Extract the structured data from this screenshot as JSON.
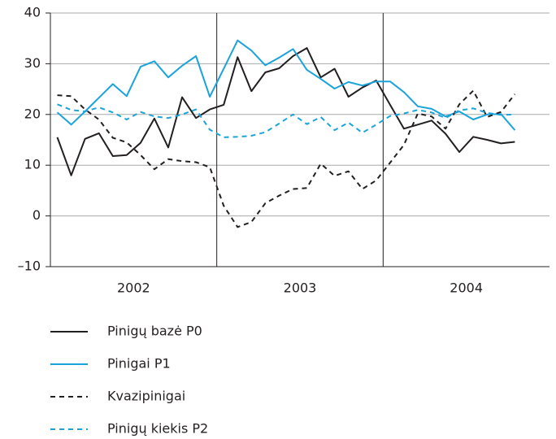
{
  "chart_data": {
    "type": "line",
    "years": [
      "2002",
      "2003",
      "2004"
    ],
    "ylim": [
      -10,
      40
    ],
    "yticks": [
      {
        "value": -10,
        "label": "–10"
      },
      0,
      10,
      20,
      30,
      40
    ],
    "grid": true,
    "legend": "bottom",
    "series": [
      {
        "name": "Pinigų bazė P0",
        "color": "#231f20",
        "dash": false,
        "values": [
          15.5,
          8,
          15.2,
          16.3,
          11.8,
          12,
          14.4,
          19.2,
          13.5,
          23.4,
          19.3,
          21,
          21.9,
          31.3,
          24.6,
          28.3,
          29.1,
          31.5,
          33.1,
          27.3,
          29,
          23.5,
          25.3,
          26.7,
          21.9,
          17.2,
          18,
          18.8,
          16.2,
          12.6,
          15.6,
          15,
          14.3,
          14.6,
          null,
          null
        ]
      },
      {
        "name": "Pinigai P1",
        "color": "#1ba3dc",
        "dash": false,
        "values": [
          20.4,
          18,
          20.6,
          23.3,
          26,
          23.6,
          29.4,
          30.5,
          27.3,
          29.6,
          31.5,
          23.5,
          29,
          34.6,
          32.6,
          29.7,
          31.2,
          32.9,
          28.8,
          27,
          25.1,
          26.4,
          25.7,
          26.5,
          26.5,
          24.4,
          21.6,
          21.1,
          19.6,
          20.6,
          19,
          20,
          20.1,
          16.9,
          null,
          null
        ]
      },
      {
        "name": "Kvazipinigai",
        "color": "#231f20",
        "dash": true,
        "values": [
          23.8,
          23.6,
          21,
          19,
          15.4,
          14.5,
          12,
          9.2,
          11.2,
          10.8,
          10.6,
          9.6,
          2,
          -2.2,
          -1.2,
          2.5,
          4,
          5.3,
          5.5,
          10.3,
          7.9,
          8.8,
          5.3,
          7,
          10.5,
          14,
          20.2,
          19.6,
          17.2,
          22,
          24.7,
          19.5,
          20.5,
          24,
          null,
          null
        ]
      },
      {
        "name": "Pinigų kiekis P2",
        "color": "#1ba3dc",
        "dash": true,
        "values": [
          22,
          20.9,
          20.6,
          21.4,
          20.4,
          19,
          20.5,
          19.6,
          19.3,
          20,
          21,
          17,
          15.5,
          15.6,
          15.8,
          16.5,
          18.2,
          20,
          18.1,
          19.5,
          16.9,
          18.4,
          16.4,
          18,
          19.7,
          20.2,
          20.9,
          20.4,
          19.3,
          20.8,
          21.2,
          20.3,
          19.9,
          20,
          null,
          null
        ]
      }
    ]
  }
}
